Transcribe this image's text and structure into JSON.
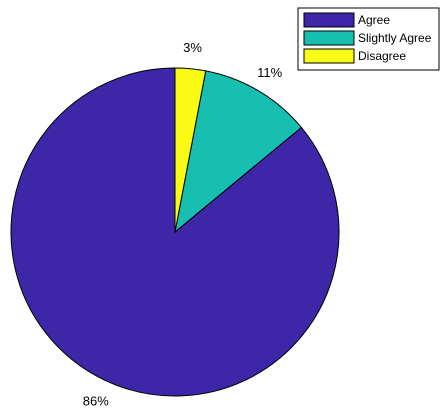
{
  "chart_data": {
    "type": "pie",
    "categories": [
      "Agree",
      "Slightly Agree",
      "Disagree"
    ],
    "values": [
      86,
      11,
      3
    ],
    "value_labels": [
      "86%",
      "11%",
      "3%"
    ],
    "colors": [
      "#3e26a8",
      "#16bfb0",
      "#f9fb15"
    ],
    "edge_color": "#000000",
    "start_angle": "12 o'clock",
    "direction": "counterclockwise",
    "legend": {
      "placement": "top-right",
      "entries": [
        "Agree",
        "Slightly Agree",
        "Disagree"
      ]
    }
  }
}
